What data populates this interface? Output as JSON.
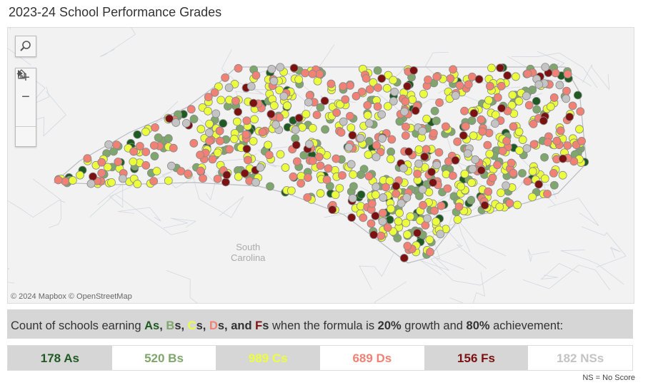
{
  "title": "2023-24 School Performance Grades",
  "map": {
    "attribution": "© 2024 Mapbox  © OpenStreetMap",
    "labels": {
      "south_carolina": "South\nCarolina"
    },
    "controls": {
      "search": "search-icon",
      "zoom_in": "+",
      "zoom_out": "−",
      "home": "home-icon",
      "play": "play-icon"
    }
  },
  "colors": {
    "A": "#1f5a22",
    "B": "#7fa66c",
    "C": "#ecff3c",
    "D": "#f08174",
    "F": "#7b1111",
    "NS": "#c4c4c4"
  },
  "band": {
    "prefix": "Count of schools earning ",
    "A": "As",
    "comma1": ", ",
    "B": "B",
    "s1": "s, ",
    "C": "C",
    "s2": "s, ",
    "D": "D",
    "s3": "s, and ",
    "F": "F",
    "s4": "s",
    "mid": " when the formula is ",
    "growth": "20%",
    "mid2": " growth and ",
    "ach": "80%",
    "end": " achievement:"
  },
  "counts": [
    {
      "grade": "A",
      "label": "178 As",
      "value": 178
    },
    {
      "grade": "B",
      "label": "520 Bs",
      "value": 520
    },
    {
      "grade": "C",
      "label": "989 Cs",
      "value": 989
    },
    {
      "grade": "D",
      "label": "689 Ds",
      "value": 689
    },
    {
      "grade": "F",
      "label": "156 Fs",
      "value": 156
    },
    {
      "grade": "NS",
      "label": "182 NSs",
      "value": 182
    }
  ],
  "note": "NS = No Score"
}
